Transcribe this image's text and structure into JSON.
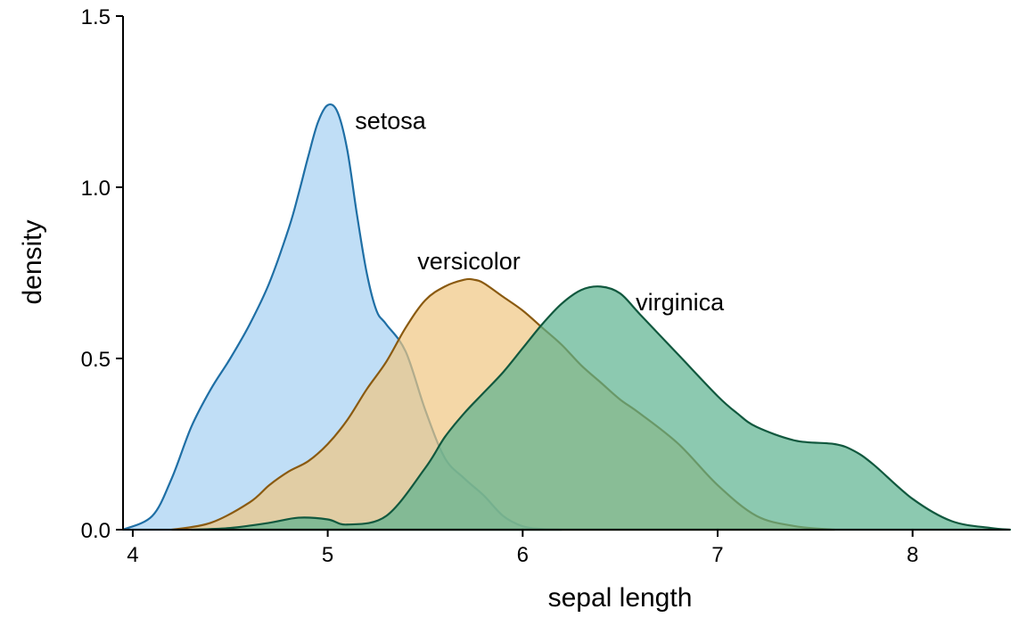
{
  "chart_data": {
    "type": "area",
    "xlabel": "sepal length",
    "ylabel": "density",
    "xlim": [
      3.95,
      8.5
    ],
    "ylim": [
      0,
      1.5
    ],
    "xticks": [
      4,
      5,
      6,
      7,
      8
    ],
    "yticks": [
      0.0,
      0.5,
      1.0,
      1.5
    ],
    "ytick_labels": [
      "0.0",
      "0.5",
      "1.0",
      "1.5"
    ],
    "grid": false,
    "legend": "none (direct labels)",
    "series": [
      {
        "name": "setosa",
        "fill": "#a5d0f2",
        "stroke": "#1f6fa5",
        "label": "setosa",
        "label_at": [
          5.14,
          1.17
        ],
        "x": [
          3.95,
          4.1,
          4.2,
          4.3,
          4.4,
          4.5,
          4.6,
          4.7,
          4.8,
          4.85,
          4.9,
          4.95,
          5.0,
          5.05,
          5.1,
          5.15,
          5.2,
          5.25,
          5.3,
          5.4,
          5.5,
          5.6,
          5.7,
          5.8,
          5.9,
          6.0,
          6.1,
          6.2
        ],
        "y": [
          0.0,
          0.04,
          0.15,
          0.3,
          0.41,
          0.5,
          0.6,
          0.72,
          0.88,
          0.98,
          1.09,
          1.19,
          1.24,
          1.22,
          1.11,
          0.92,
          0.75,
          0.64,
          0.6,
          0.52,
          0.35,
          0.21,
          0.15,
          0.1,
          0.04,
          0.01,
          0.002,
          0.0
        ]
      },
      {
        "name": "versicolor",
        "fill": "#f0c681",
        "stroke": "#8a5a10",
        "label": "versicolor",
        "label_at": [
          5.46,
          0.76
        ],
        "x": [
          4.2,
          4.4,
          4.6,
          4.7,
          4.8,
          4.9,
          5.0,
          5.1,
          5.2,
          5.3,
          5.4,
          5.5,
          5.6,
          5.7,
          5.75,
          5.8,
          5.9,
          6.0,
          6.1,
          6.2,
          6.3,
          6.4,
          6.5,
          6.6,
          6.8,
          7.0,
          7.2,
          7.4,
          7.6
        ],
        "y": [
          0.0,
          0.02,
          0.08,
          0.13,
          0.17,
          0.2,
          0.25,
          0.32,
          0.41,
          0.49,
          0.59,
          0.67,
          0.71,
          0.73,
          0.73,
          0.72,
          0.68,
          0.64,
          0.59,
          0.54,
          0.48,
          0.43,
          0.38,
          0.34,
          0.25,
          0.13,
          0.04,
          0.01,
          0.0
        ]
      },
      {
        "name": "virginica",
        "fill": "#5bb28f",
        "stroke": "#11583e",
        "label": "virginica",
        "label_at": [
          6.58,
          0.64
        ],
        "x": [
          4.3,
          4.5,
          4.7,
          4.85,
          5.0,
          5.1,
          5.3,
          5.5,
          5.6,
          5.7,
          5.8,
          5.9,
          6.0,
          6.1,
          6.2,
          6.3,
          6.4,
          6.5,
          6.6,
          6.8,
          7.0,
          7.1,
          7.2,
          7.4,
          7.6,
          7.7,
          7.8,
          8.0,
          8.2,
          8.4,
          8.5
        ],
        "y": [
          0.0,
          0.005,
          0.02,
          0.035,
          0.03,
          0.015,
          0.04,
          0.18,
          0.27,
          0.34,
          0.4,
          0.46,
          0.53,
          0.6,
          0.66,
          0.7,
          0.71,
          0.69,
          0.63,
          0.51,
          0.39,
          0.34,
          0.3,
          0.26,
          0.25,
          0.23,
          0.19,
          0.09,
          0.025,
          0.005,
          0.0
        ]
      }
    ]
  }
}
